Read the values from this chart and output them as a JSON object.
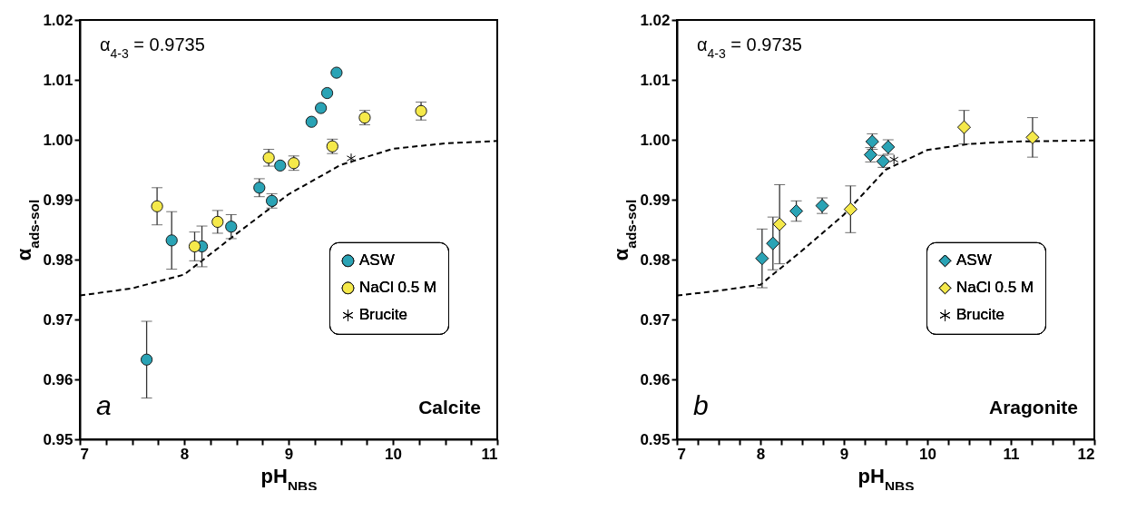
{
  "chart_data": [
    {
      "type": "scatter",
      "xlabel": "pH$_{NBS}$",
      "ylabel": "α$_{ads-sol}$",
      "xlim": [
        7,
        11
      ],
      "ylim": [
        0.95,
        1.02
      ],
      "xticks": [
        7,
        {
          "value": 7.25,
          "label": null
        },
        {
          "value": 7.5,
          "label": null
        },
        {
          "value": 7.75,
          "label": null
        },
        8,
        {
          "value": 8.25,
          "label": null
        },
        {
          "value": 8.5,
          "label": null
        },
        {
          "value": 8.75,
          "label": null
        },
        9,
        {
          "value": 9.25,
          "label": null
        },
        {
          "value": 9.5,
          "label": null
        },
        {
          "value": 9.75,
          "label": null
        },
        10,
        {
          "value": 10.25,
          "label": null
        },
        {
          "value": 10.5,
          "label": null
        },
        {
          "value": 10.75,
          "label": null
        },
        11
      ],
      "yticks": [
        0.95,
        0.96,
        0.97,
        0.98,
        0.99,
        {
          "value": 1.0,
          "label": "1.00"
        },
        1.01,
        1.02
      ],
      "annotations": [
        "α$_{4-3}$ = 0.9735",
        "a",
        "Calcite"
      ],
      "legend": "right",
      "grid": false,
      "series": [
        {
          "name": "ASW",
          "color": "#2aa3b5",
          "marker": "circle",
          "x": [
            9.46,
            9.37,
            9.31,
            9.22,
            8.92,
            8.72,
            8.84,
            8.45,
            8.17,
            7.88,
            7.64
          ],
          "values": [
            1.0112,
            1.0078,
            1.0053,
            1.003,
            0.9957,
            0.992,
            0.9898,
            0.9855,
            0.9822,
            0.9832,
            0.9633
          ],
          "errors": [
            null,
            null,
            null,
            null,
            null,
            0.0015,
            0.0012,
            0.002,
            0.0034,
            0.0048,
            0.0064
          ]
        },
        {
          "name": "NaCl 0.5 M",
          "color": "#f5e94a",
          "marker": "circle",
          "x": [
            10.27,
            9.73,
            9.42,
            9.05,
            8.81,
            8.32,
            8.1,
            7.74
          ],
          "values": [
            1.0048,
            1.0037,
            0.9989,
            0.9961,
            0.997,
            0.9863,
            0.9822,
            0.9889
          ],
          "errors": [
            0.0015,
            0.0012,
            0.0012,
            0.0012,
            0.0014,
            0.0019,
            0.0024,
            0.0031
          ]
        },
        {
          "name": "Brucite",
          "color": "#000000",
          "marker": "cross",
          "x": [
            9.6
          ],
          "values": [
            0.9969
          ]
        },
        {
          "type": "line",
          "color": "#000000",
          "line_style": "dashed",
          "x": [
            7,
            7.5,
            8,
            8.5,
            9,
            9.5,
            10,
            10.5,
            11
          ],
          "values": [
            0.974,
            0.9752,
            0.9775,
            0.9843,
            0.9909,
            0.9958,
            0.9985,
            0.9994,
            0.9998
          ]
        }
      ]
    },
    {
      "type": "scatter",
      "xlabel": "pH$_{NBS}$",
      "ylabel": "α$_{ads-sol}$",
      "xlim": [
        7,
        12
      ],
      "ylim": [
        0.95,
        1.02
      ],
      "xticks": [
        7,
        {
          "value": 7.25,
          "label": null
        },
        {
          "value": 7.5,
          "label": null
        },
        {
          "value": 7.75,
          "label": null
        },
        8,
        {
          "value": 8.25,
          "label": null
        },
        {
          "value": 8.5,
          "label": null
        },
        {
          "value": 8.75,
          "label": null
        },
        9,
        {
          "value": 9.25,
          "label": null
        },
        {
          "value": 9.5,
          "label": null
        },
        {
          "value": 9.75,
          "label": null
        },
        10,
        {
          "value": 10.25,
          "label": null
        },
        {
          "value": 10.5,
          "label": null
        },
        {
          "value": 10.75,
          "label": null
        },
        11,
        {
          "value": 11.25,
          "label": null
        },
        {
          "value": 11.5,
          "label": null
        },
        {
          "value": 11.75,
          "label": null
        },
        12
      ],
      "yticks": [
        0.95,
        0.96,
        0.97,
        0.98,
        0.99,
        {
          "value": 1.0,
          "label": "1.00"
        },
        1.01,
        1.02
      ],
      "annotations": [
        "α$_{4-3}$ = 0.9735",
        "b",
        "Aragonite"
      ],
      "legend": "right",
      "grid": false,
      "series": [
        {
          "name": "ASW",
          "color": "#2aa3b5",
          "marker": "diamond",
          "x": [
            9.34,
            9.53,
            9.32,
            9.47,
            8.74,
            8.43,
            8.15,
            8.02
          ],
          "values": [
            0.9997,
            0.9988,
            0.9975,
            0.9964,
            0.989,
            0.9881,
            0.9827,
            0.9802
          ],
          "errors": [
            0.0013,
            0.0012,
            0.0012,
            0.001,
            0.0013,
            0.0017,
            0.0044,
            0.0049
          ]
        },
        {
          "name": "NaCl 0.5 M",
          "color": "#f5e94a",
          "marker": "diamond",
          "x": [
            10.44,
            11.26,
            9.08,
            8.23
          ],
          "values": [
            1.0021,
            1.0004,
            0.9884,
            0.9859
          ],
          "errors": [
            0.0028,
            0.0033,
            0.0039,
            0.0066
          ]
        },
        {
          "name": "Brucite",
          "color": "#000000",
          "marker": "cross",
          "x": [
            9.6
          ],
          "values": [
            0.9967
          ]
        },
        {
          "type": "line",
          "color": "#000000",
          "line_style": "dashed",
          "x": [
            7,
            7.5,
            8,
            8.5,
            9,
            9.5,
            10,
            10.5,
            11,
            12
          ],
          "values": [
            0.974,
            0.9748,
            0.9758,
            0.9815,
            0.9875,
            0.995,
            0.9983,
            0.9993,
            0.9997,
            0.9999
          ]
        }
      ]
    }
  ]
}
